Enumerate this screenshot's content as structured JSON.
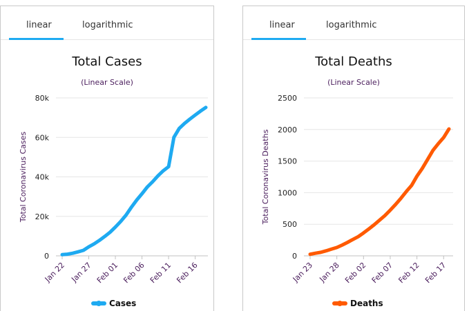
{
  "chart_data": [
    {
      "type": "line",
      "tabs": [
        "linear",
        "logarithmic"
      ],
      "active_tab": "linear",
      "title": "Total Cases",
      "subtitle": "(Linear Scale)",
      "ylabel": "Total Coronavirus Cases",
      "ylim": [
        0,
        80000
      ],
      "y_ticks": [
        0,
        20000,
        40000,
        60000,
        80000
      ],
      "y_tick_labels": [
        "0",
        "20k",
        "40k",
        "60k",
        "80k"
      ],
      "x": [
        "Jan 22",
        "Jan 23",
        "Jan 24",
        "Jan 25",
        "Jan 26",
        "Jan 27",
        "Jan 28",
        "Jan 29",
        "Jan 30",
        "Jan 31",
        "Feb 01",
        "Feb 02",
        "Feb 03",
        "Feb 04",
        "Feb 05",
        "Feb 06",
        "Feb 07",
        "Feb 08",
        "Feb 09",
        "Feb 10",
        "Feb 11",
        "Feb 12",
        "Feb 13",
        "Feb 14",
        "Feb 15",
        "Feb 16",
        "Feb 17",
        "Feb 18"
      ],
      "x_tick_labels": [
        "Jan 22",
        "Jan 27",
        "Feb 01",
        "Feb 06",
        "Feb 11",
        "Feb 16"
      ],
      "series": [
        {
          "name": "Cases",
          "color": "#1eaaf1",
          "values": [
            580,
            845,
            1317,
            2015,
            2800,
            4581,
            6058,
            7813,
            9821,
            11948,
            14551,
            17389,
            20628,
            24553,
            28276,
            31481,
            34886,
            37558,
            40554,
            43103,
            45171,
            60092,
            64543,
            67100,
            69264,
            71332,
            73327,
            75184
          ]
        }
      ],
      "grid": true,
      "legend": "bottom"
    },
    {
      "type": "line",
      "tabs": [
        "linear",
        "logarithmic"
      ],
      "active_tab": "linear",
      "title": "Total Deaths",
      "subtitle": "(Linear Scale)",
      "ylabel": "Total Coronavirus Deaths",
      "ylim": [
        0,
        2500
      ],
      "y_ticks": [
        0,
        500,
        1000,
        1500,
        2000,
        2500
      ],
      "y_tick_labels": [
        "0",
        "500",
        "1000",
        "1500",
        "2000",
        "2500"
      ],
      "x": [
        "Jan 23",
        "Jan 24",
        "Jan 25",
        "Jan 26",
        "Jan 27",
        "Jan 28",
        "Jan 29",
        "Jan 30",
        "Jan 31",
        "Feb 01",
        "Feb 02",
        "Feb 03",
        "Feb 04",
        "Feb 05",
        "Feb 06",
        "Feb 07",
        "Feb 08",
        "Feb 09",
        "Feb 10",
        "Feb 11",
        "Feb 12",
        "Feb 13",
        "Feb 14",
        "Feb 15",
        "Feb 16",
        "Feb 17",
        "Feb 18"
      ],
      "x_tick_labels": [
        "Jan 23",
        "Jan 28",
        "Feb 02",
        "Feb 07",
        "Feb 12",
        "Feb 17"
      ],
      "series": [
        {
          "name": "Deaths",
          "color": "#ff5a00",
          "values": [
            25,
            41,
            56,
            80,
            106,
            132,
            170,
            213,
            259,
            304,
            362,
            426,
            492,
            565,
            638,
            724,
            813,
            910,
            1018,
            1115,
            1261,
            1383,
            1526,
            1669,
            1775,
            1873,
            2009
          ]
        }
      ],
      "grid": true,
      "legend": "bottom"
    }
  ]
}
